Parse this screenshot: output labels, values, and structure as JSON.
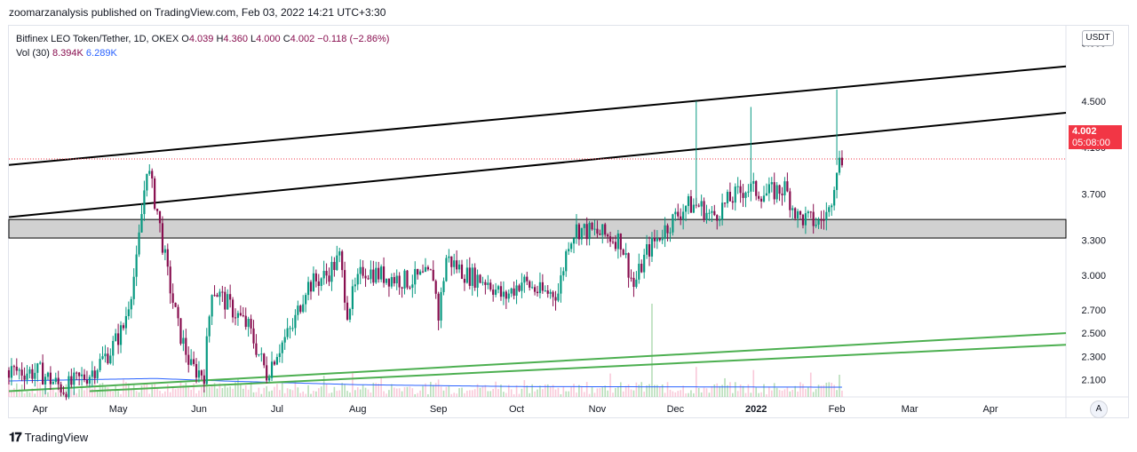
{
  "header": {
    "published": "zoomarzanalysis published on TradingView.com, Feb 03, 2022 14:21 UTC+3:30"
  },
  "legend": {
    "symbol": "Bitfinex LEO Token/Tether, 1D, OKEX",
    "o_label": "O",
    "o_value": "4.039",
    "h_label": "H",
    "h_value": "4.360",
    "l_label": "L",
    "l_value": "4.000",
    "c_label": "C",
    "c_value": "4.002",
    "change": "−0.118 (−2.86%)",
    "vol_label": "Vol (30)",
    "vol_value": "8.394K",
    "vol_ma": "6.289K"
  },
  "currency_button": "USDT",
  "price_tag": {
    "price": "4.002",
    "countdown": "05:08:00"
  },
  "auto_button": "A",
  "footer": {
    "brand": "TradingView",
    "logo_icon": "tv-logo-icon"
  },
  "colors": {
    "up": "#089981",
    "down": "#880e4f",
    "support": "#4caf50",
    "resistance": "#000000",
    "zone": "#d1d1d1",
    "vol_ma": "#2962ff"
  },
  "chart_data": {
    "type": "candlestick",
    "y_axis_labels": [
      "5.000",
      "4.500",
      "4.100",
      "3.700",
      "3.300",
      "3.000",
      "2.700",
      "2.500",
      "2.300",
      "2.100"
    ],
    "x_axis_labels": [
      "Apr",
      "May",
      "Jun",
      "Jul",
      "Aug",
      "Sep",
      "Oct",
      "Nov",
      "Dec",
      "2022",
      "Feb",
      "Mar",
      "Apr"
    ],
    "ylim": [
      1.95,
      5.15
    ],
    "grid": false,
    "price_path": [
      [
        "2021-03-20",
        2.18
      ],
      [
        "2021-04-01",
        2.16
      ],
      [
        "2021-04-10",
        2.02
      ],
      [
        "2021-04-20",
        2.15
      ],
      [
        "2021-04-28",
        2.35
      ],
      [
        "2021-05-03",
        2.55
      ],
      [
        "2021-05-08",
        3.1
      ],
      [
        "2021-05-12",
        3.95
      ],
      [
        "2021-05-16",
        3.55
      ],
      [
        "2021-05-20",
        3.0
      ],
      [
        "2021-05-24",
        2.55
      ],
      [
        "2021-05-29",
        2.2
      ],
      [
        "2021-06-03",
        2.15
      ],
      [
        "2021-06-06",
        2.9
      ],
      [
        "2021-06-12",
        2.75
      ],
      [
        "2021-06-20",
        2.55
      ],
      [
        "2021-06-27",
        2.15
      ],
      [
        "2021-07-01",
        2.35
      ],
      [
        "2021-07-07",
        2.55
      ],
      [
        "2021-07-12",
        2.9
      ],
      [
        "2021-07-20",
        3.0
      ],
      [
        "2021-07-25",
        3.15
      ],
      [
        "2021-07-28",
        2.7
      ],
      [
        "2021-08-03",
        3.05
      ],
      [
        "2021-08-10",
        3.0
      ],
      [
        "2021-08-20",
        2.95
      ],
      [
        "2021-08-30",
        3.0
      ],
      [
        "2021-09-01",
        2.65
      ],
      [
        "2021-09-04",
        3.15
      ],
      [
        "2021-09-12",
        3.0
      ],
      [
        "2021-09-20",
        2.95
      ],
      [
        "2021-09-26",
        2.8
      ],
      [
        "2021-10-03",
        2.95
      ],
      [
        "2021-10-10",
        2.85
      ],
      [
        "2021-10-17",
        2.85
      ],
      [
        "2021-10-21",
        3.3
      ],
      [
        "2021-10-24",
        3.4
      ],
      [
        "2021-11-03",
        3.35
      ],
      [
        "2021-11-10",
        3.3
      ],
      [
        "2021-11-15",
        2.9
      ],
      [
        "2021-11-20",
        3.2
      ],
      [
        "2021-11-27",
        3.4
      ],
      [
        "2021-12-05",
        3.6
      ],
      [
        "2021-12-10",
        3.6
      ],
      [
        "2021-12-15",
        3.5
      ],
      [
        "2021-12-22",
        3.65
      ],
      [
        "2021-12-28",
        3.75
      ],
      [
        "2022-01-05",
        3.7
      ],
      [
        "2022-01-12",
        3.75
      ],
      [
        "2022-01-17",
        3.5
      ],
      [
        "2022-01-25",
        3.45
      ],
      [
        "2022-01-29",
        3.55
      ],
      [
        "2022-02-01",
        3.95
      ],
      [
        "2022-02-03",
        4.0
      ]
    ],
    "spikes": [
      [
        "2021-12-09",
        4.5
      ],
      [
        "2021-12-30",
        4.45
      ],
      [
        "2022-02-01",
        4.6
      ]
    ],
    "resistance_lines": [
      {
        "x": [
          "2021-03-20",
          "2022-04-30"
        ],
        "y": [
          3.95,
          4.8
        ]
      },
      {
        "x": [
          "2021-03-20",
          "2022-04-30"
        ],
        "y": [
          3.5,
          4.4
        ]
      }
    ],
    "support_lines": [
      {
        "x": [
          "2021-03-20",
          "2022-04-30"
        ],
        "y": [
          2.0,
          2.5
        ]
      },
      {
        "x": [
          "2021-04-20",
          "2022-04-30"
        ],
        "y": [
          2.0,
          2.4
        ]
      }
    ],
    "zone": [
      3.32,
      3.48
    ],
    "last_price_line": 4.002,
    "volume_ma": [
      [
        "2021-03-20",
        1.0
      ],
      [
        "2021-05-15",
        1.2
      ],
      [
        "2021-06-10",
        1.0
      ],
      [
        "2021-08-01",
        0.7
      ],
      [
        "2021-10-01",
        0.55
      ],
      [
        "2022-02-03",
        0.5
      ]
    ]
  }
}
